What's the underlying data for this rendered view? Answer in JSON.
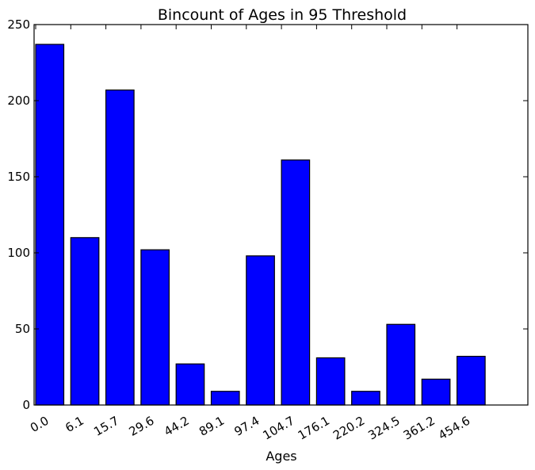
{
  "chart_data": {
    "type": "bar",
    "title": "Bincount of Ages in 95 Threshold",
    "xlabel": "Ages",
    "ylabel": "",
    "categories": [
      "0.0",
      "6.1",
      "15.7",
      "29.6",
      "44.2",
      "89.1",
      "97.4",
      "104.7",
      "176.1",
      "220.2",
      "324.5",
      "361.2",
      "454.6"
    ],
    "values": [
      237,
      110,
      207,
      102,
      27,
      9,
      98,
      161,
      31,
      9,
      53,
      17,
      32
    ],
    "ylim": [
      0,
      250
    ],
    "yticks": [
      0,
      50,
      100,
      150,
      200,
      250
    ],
    "grid": false,
    "bar_color": "#0000ff",
    "edge_color": "#000000"
  }
}
